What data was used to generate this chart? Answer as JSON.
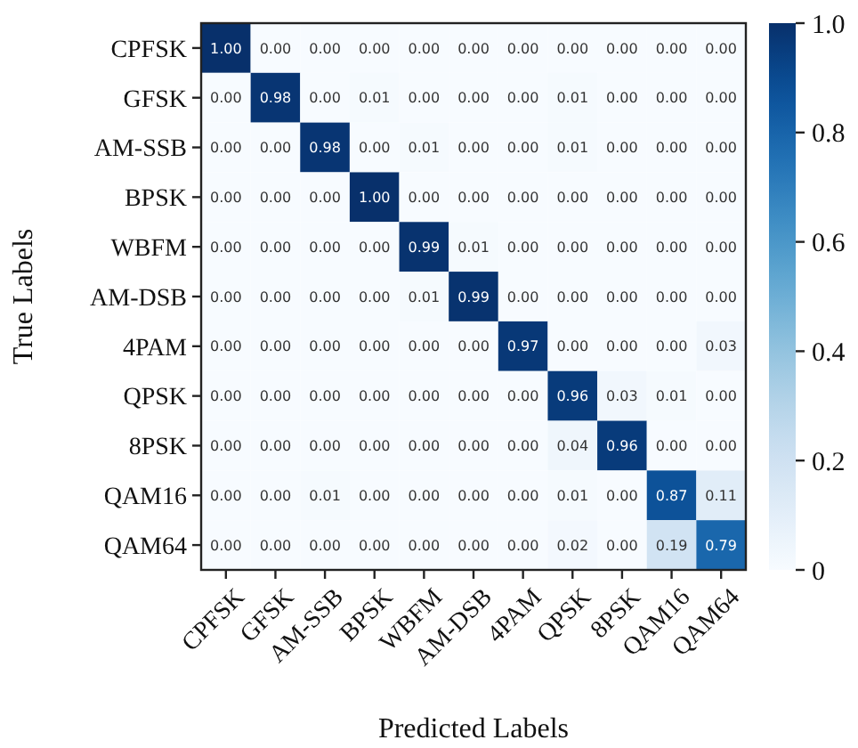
{
  "chart_data": {
    "type": "heatmap",
    "xlabel": "Predicted Labels",
    "ylabel": "True Labels",
    "categories": [
      "CPFSK",
      "GFSK",
      "AM-SSB",
      "BPSK",
      "WBFM",
      "AM-DSB",
      "4PAM",
      "QPSK",
      "8PSK",
      "QAM16",
      "QAM64"
    ],
    "y_categories": [
      "CPFSK",
      "GFSK",
      "AM-SSB",
      "BPSK",
      "WBFM",
      "AM-DSB",
      "4PAM",
      "QPSK",
      "8PSK",
      "QAM16",
      "QAM64"
    ],
    "cells": [
      [
        1.0,
        0.0,
        0.0,
        0.0,
        0.0,
        0.0,
        0.0,
        0.0,
        0.0,
        0.0,
        0.0
      ],
      [
        0.0,
        0.98,
        0.0,
        0.01,
        0.0,
        0.0,
        0.0,
        0.01,
        0.0,
        0.0,
        0.0
      ],
      [
        0.0,
        0.0,
        0.98,
        0.0,
        0.01,
        0.0,
        0.0,
        0.01,
        0.0,
        0.0,
        0.0
      ],
      [
        0.0,
        0.0,
        0.0,
        1.0,
        0.0,
        0.0,
        0.0,
        0.0,
        0.0,
        0.0,
        0.0
      ],
      [
        0.0,
        0.0,
        0.0,
        0.0,
        0.99,
        0.01,
        0.0,
        0.0,
        0.0,
        0.0,
        0.0
      ],
      [
        0.0,
        0.0,
        0.0,
        0.0,
        0.01,
        0.99,
        0.0,
        0.0,
        0.0,
        0.0,
        0.0
      ],
      [
        0.0,
        0.0,
        0.0,
        0.0,
        0.0,
        0.0,
        0.97,
        0.0,
        0.0,
        0.0,
        0.03
      ],
      [
        0.0,
        0.0,
        0.0,
        0.0,
        0.0,
        0.0,
        0.0,
        0.96,
        0.03,
        0.01,
        0.0
      ],
      [
        0.0,
        0.0,
        0.0,
        0.0,
        0.0,
        0.0,
        0.0,
        0.04,
        0.96,
        0.0,
        0.0
      ],
      [
        0.0,
        0.0,
        0.01,
        0.0,
        0.0,
        0.0,
        0.0,
        0.01,
        0.0,
        0.87,
        0.11
      ],
      [
        0.0,
        0.0,
        0.0,
        0.0,
        0.0,
        0.0,
        0.0,
        0.02,
        0.0,
        0.19,
        0.79
      ]
    ],
    "cell_labels": [
      [
        "1.00",
        "0.00",
        "0.00",
        "0.00",
        "0.00",
        "0.00",
        "0.00",
        "0.00",
        "0.00",
        "0.00",
        "0.00"
      ],
      [
        "0.00",
        "0.98",
        "0.00",
        "0.01",
        "0.00",
        "0.00",
        "0.00",
        "0.01",
        "0.00",
        "0.00",
        "0.00"
      ],
      [
        "0.00",
        "0.00",
        "0.98",
        "0.00",
        "0.01",
        "0.00",
        "0.00",
        "0.01",
        "0.00",
        "0.00",
        "0.00"
      ],
      [
        "0.00",
        "0.00",
        "0.00",
        "1.00",
        "0.00",
        "0.00",
        "0.00",
        "0.00",
        "0.00",
        "0.00",
        "0.00"
      ],
      [
        "0.00",
        "0.00",
        "0.00",
        "0.00",
        "0.99",
        "0.01",
        "0.00",
        "0.00",
        "0.00",
        "0.00",
        "0.00"
      ],
      [
        "0.00",
        "0.00",
        "0.00",
        "0.00",
        "0.01",
        "0.99",
        "0.00",
        "0.00",
        "0.00",
        "0.00",
        "0.00"
      ],
      [
        "0.00",
        "0.00",
        "0.00",
        "0.00",
        "0.00",
        "0.00",
        "0.97",
        "0.00",
        "0.00",
        "0.00",
        "0.03"
      ],
      [
        "0.00",
        "0.00",
        "0.00",
        "0.00",
        "0.00",
        "0.00",
        "0.00",
        "0.96",
        "0.03",
        "0.01",
        "0.00"
      ],
      [
        "0.00",
        "0.00",
        "0.00",
        "0.00",
        "0.00",
        "0.00",
        "0.00",
        "0.04",
        "0.96",
        "0.00",
        "0.00"
      ],
      [
        "0.00",
        "0.00",
        "0.01",
        "0.00",
        "0.00",
        "0.00",
        "0.00",
        "0.01",
        "0.00",
        "0.87",
        "0.11"
      ],
      [
        "0.00",
        "0.00",
        "0.00",
        "0.00",
        "0.00",
        "0.00",
        "0.00",
        "0.02",
        "0.00",
        "0.19",
        "0.79"
      ]
    ],
    "clim": [
      0,
      1
    ],
    "cticks": [
      {
        "value": 0,
        "label": "0"
      },
      0.2,
      0.4,
      0.6,
      0.8,
      {
        "value": 1,
        "label": "1.0"
      }
    ]
  }
}
